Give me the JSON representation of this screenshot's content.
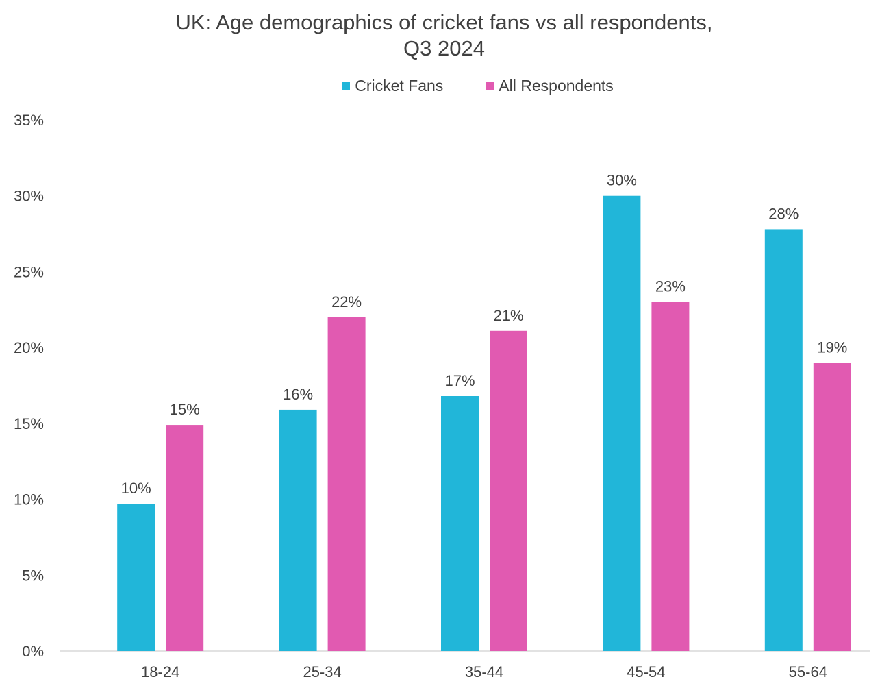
{
  "chart_data": {
    "type": "bar",
    "title": "UK: Age demographics of cricket fans vs all respondents,",
    "subtitle": "Q3 2024",
    "categories": [
      "18-24",
      "25-34",
      "35-44",
      "45-54",
      "55-64"
    ],
    "series": [
      {
        "name": "Cricket Fans",
        "color": "#21b6d9",
        "values": [
          9.7,
          15.9,
          16.8,
          30.0,
          27.8
        ],
        "labels": [
          "10%",
          "16%",
          "17%",
          "30%",
          "28%"
        ]
      },
      {
        "name": "All Respondents",
        "color": "#e15ab1",
        "values": [
          14.9,
          22.0,
          21.1,
          23.0,
          19.0
        ],
        "labels": [
          "15%",
          "22%",
          "21%",
          "23%",
          "19%"
        ]
      }
    ],
    "ylim": [
      0,
      35
    ],
    "yticks": [
      0,
      5,
      10,
      15,
      20,
      25,
      30,
      35
    ],
    "ytick_labels": [
      "0%",
      "5%",
      "10%",
      "15%",
      "20%",
      "25%",
      "30%",
      "35%"
    ],
    "xlabel": "",
    "ylabel": "",
    "grid": false,
    "legend_position": "top-center"
  }
}
